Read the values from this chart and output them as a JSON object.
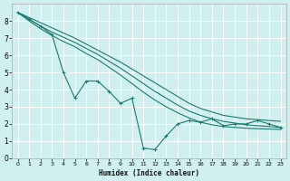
{
  "xlabel": "Humidex (Indice chaleur)",
  "bg_color": "#cff0ee",
  "grid_color": "#ffffff",
  "line_color": "#1a7a70",
  "xlim": [
    -0.5,
    23.5
  ],
  "ylim": [
    0,
    9
  ],
  "xticks": [
    0,
    1,
    2,
    3,
    4,
    5,
    6,
    7,
    8,
    9,
    10,
    11,
    12,
    13,
    14,
    15,
    16,
    17,
    18,
    19,
    20,
    21,
    22,
    23
  ],
  "yticks": [
    0,
    1,
    2,
    3,
    4,
    5,
    6,
    7,
    8
  ],
  "line1_y": [
    8.5,
    8.2,
    7.9,
    7.6,
    7.3,
    7.0,
    6.65,
    6.3,
    5.95,
    5.6,
    5.2,
    4.8,
    4.4,
    4.0,
    3.6,
    3.2,
    2.9,
    2.7,
    2.5,
    2.4,
    2.3,
    2.25,
    2.2,
    2.15
  ],
  "line2_y": [
    8.5,
    8.1,
    7.7,
    7.35,
    7.05,
    6.75,
    6.4,
    6.05,
    5.65,
    5.25,
    4.8,
    4.35,
    3.9,
    3.5,
    3.1,
    2.75,
    2.5,
    2.3,
    2.15,
    2.05,
    1.95,
    1.9,
    1.85,
    1.8
  ],
  "line3_y": [
    8.5,
    8.0,
    7.55,
    7.15,
    6.8,
    6.5,
    6.1,
    5.75,
    5.3,
    4.85,
    4.35,
    3.85,
    3.4,
    3.0,
    2.65,
    2.35,
    2.1,
    1.95,
    1.85,
    1.8,
    1.75,
    1.72,
    1.7,
    1.68
  ],
  "jagged_y": [
    8.5,
    8.1,
    7.7,
    7.2,
    5.0,
    3.5,
    4.5,
    4.5,
    3.9,
    3.2,
    3.5,
    0.6,
    0.5,
    1.3,
    2.0,
    2.2,
    2.1,
    2.3,
    1.9,
    2.0,
    2.0,
    2.2,
    2.0,
    1.8
  ]
}
